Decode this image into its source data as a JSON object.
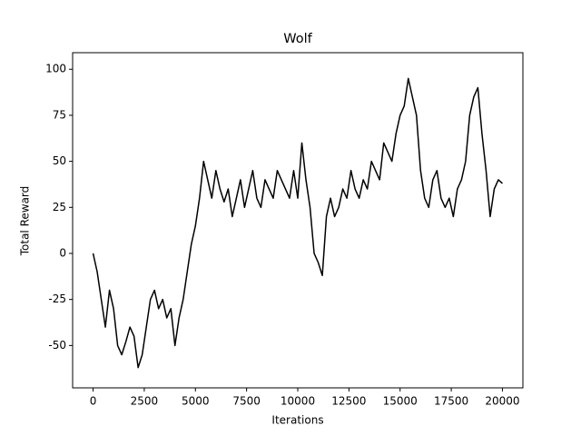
{
  "chart_data": {
    "type": "line",
    "title": "Wolf",
    "x_label": "Iterations",
    "y_label": "Total Reward",
    "x": [
      0,
      200,
      400,
      600,
      800,
      1000,
      1200,
      1400,
      1600,
      1800,
      2000,
      2200,
      2400,
      2600,
      2800,
      3000,
      3200,
      3400,
      3600,
      3800,
      4000,
      4200,
      4400,
      4600,
      4800,
      5000,
      5200,
      5400,
      5600,
      5800,
      6000,
      6200,
      6400,
      6600,
      6800,
      7000,
      7200,
      7400,
      7600,
      7800,
      8000,
      8200,
      8400,
      8600,
      8800,
      9000,
      9200,
      9400,
      9600,
      9800,
      10000,
      10200,
      10400,
      10600,
      10800,
      11000,
      11200,
      11400,
      11600,
      11800,
      12000,
      12200,
      12400,
      12600,
      12800,
      13000,
      13200,
      13400,
      13600,
      13800,
      14000,
      14200,
      14400,
      14600,
      14800,
      15000,
      15200,
      15400,
      15600,
      15800,
      16000,
      16200,
      16400,
      16600,
      16800,
      17000,
      17200,
      17400,
      17600,
      17800,
      18000,
      18200,
      18400,
      18600,
      18800,
      19000,
      19200,
      19400,
      19600,
      19800,
      20000
    ],
    "series": [
      {
        "name": "Total Reward",
        "color": "#000000",
        "values": [
          0,
          -10,
          -25,
          -40,
          -20,
          -30,
          -50,
          -55,
          -48,
          -40,
          -45,
          -62,
          -55,
          -40,
          -25,
          -20,
          -30,
          -25,
          -35,
          -30,
          -50,
          -35,
          -25,
          -10,
          5,
          15,
          30,
          50,
          40,
          30,
          45,
          35,
          28,
          35,
          20,
          30,
          40,
          25,
          35,
          45,
          30,
          25,
          40,
          35,
          30,
          45,
          40,
          35,
          30,
          45,
          30,
          60,
          40,
          25,
          0,
          -5,
          -12,
          20,
          30,
          20,
          25,
          35,
          30,
          45,
          35,
          30,
          40,
          35,
          50,
          45,
          40,
          60,
          55,
          50,
          65,
          75,
          80,
          95,
          85,
          75,
          45,
          30,
          25,
          40,
          45,
          30,
          25,
          30,
          20,
          35,
          40,
          50,
          75,
          85,
          90,
          65,
          45,
          20,
          35,
          40,
          38
        ]
      }
    ],
    "xlim": [
      -1000,
      21000
    ],
    "ylim": [
      -73,
      109
    ],
    "xticks": [
      0,
      2500,
      5000,
      7500,
      10000,
      12500,
      15000,
      17500,
      20000
    ],
    "yticks": [
      -50,
      -25,
      0,
      25,
      50,
      75,
      100
    ]
  }
}
